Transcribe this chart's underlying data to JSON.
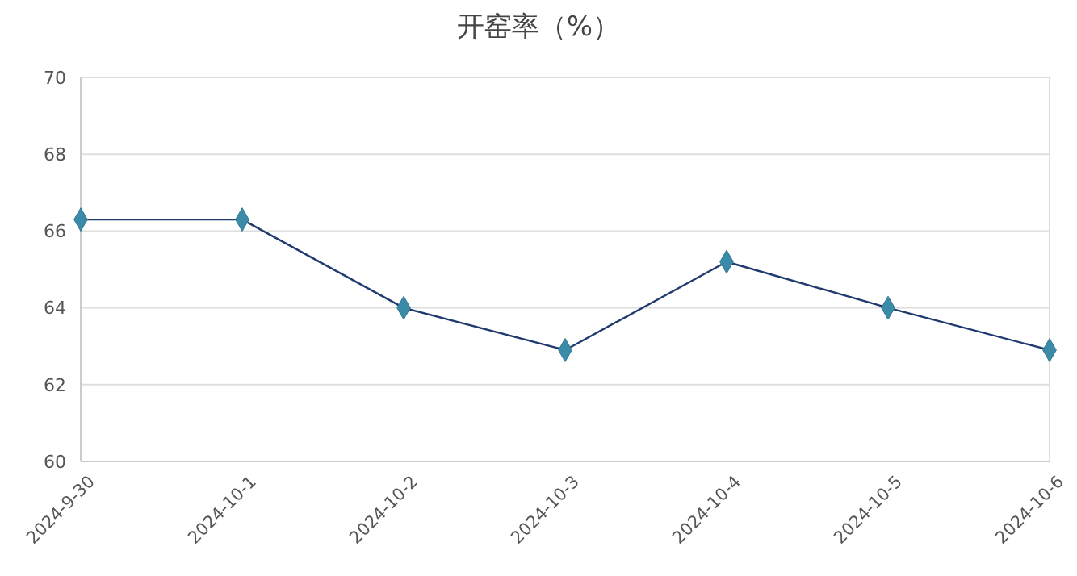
{
  "chart_data": {
    "type": "line",
    "title": "开窑率（%）",
    "categories": [
      "2024-9-30",
      "2024-10-1",
      "2024-10-2",
      "2024-10-3",
      "2024-10-4",
      "2024-10-5",
      "2024-10-6"
    ],
    "series": [
      {
        "color": "#1f3a6e",
        "values": [
          66.3,
          66.3,
          64.0,
          62.9,
          65.2,
          64.0,
          62.9
        ]
      }
    ],
    "ylim": [
      60,
      70
    ],
    "yticks": [
      60,
      62,
      64,
      66,
      68,
      70
    ],
    "grid": "y",
    "marker": "diamond",
    "line_style": "solid",
    "legend": false
  }
}
